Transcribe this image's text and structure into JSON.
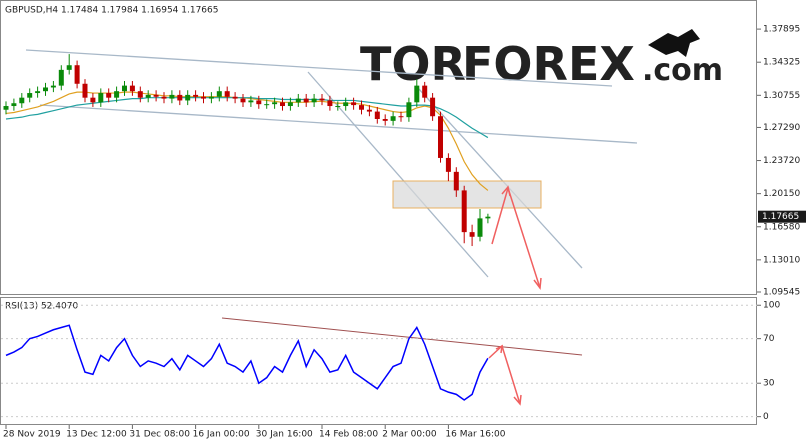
{
  "chart_data": [
    {
      "type": "candlestick",
      "title": "GBPUSD,H4  1.17484 1.17984 1.16954 1.17665",
      "logo": [
        "TOR",
        "FOREX",
        ".com"
      ],
      "up_color": "#0a8a0a",
      "down_color": "#c00000",
      "open": [
        1.292,
        1.296,
        1.299,
        1.305,
        1.31,
        1.312,
        1.316,
        1.318,
        1.335,
        1.34,
        1.32,
        1.305,
        1.3,
        1.31,
        1.305,
        1.312,
        1.318,
        1.312,
        1.305,
        1.308,
        1.306,
        1.304,
        1.308,
        1.302,
        1.308,
        1.306,
        1.304,
        1.306,
        1.312,
        1.306,
        1.304,
        1.3,
        1.302,
        1.298,
        1.298,
        1.3,
        1.296,
        1.3,
        1.304,
        1.3,
        1.304,
        1.302,
        1.296,
        1.296,
        1.3,
        1.297,
        1.292,
        1.29,
        1.282,
        1.28,
        1.285,
        1.284,
        1.3,
        1.318,
        1.305,
        1.285,
        1.24,
        1.225,
        1.205,
        1.16,
        1.155,
        1.17484
      ],
      "high": [
        1.301,
        1.304,
        1.31,
        1.315,
        1.317,
        1.321,
        1.323,
        1.34,
        1.352,
        1.345,
        1.325,
        1.31,
        1.315,
        1.315,
        1.317,
        1.323,
        1.323,
        1.317,
        1.313,
        1.313,
        1.311,
        1.313,
        1.313,
        1.313,
        1.313,
        1.311,
        1.311,
        1.317,
        1.317,
        1.311,
        1.309,
        1.307,
        1.307,
        1.303,
        1.305,
        1.305,
        1.305,
        1.309,
        1.309,
        1.309,
        1.309,
        1.307,
        1.301,
        1.305,
        1.305,
        1.302,
        1.297,
        1.295,
        1.287,
        1.29,
        1.29,
        1.305,
        1.325,
        1.322,
        1.31,
        1.29,
        1.245,
        1.23,
        1.21,
        1.168,
        1.185,
        1.17984
      ],
      "low": [
        1.287,
        1.291,
        1.294,
        1.3,
        1.305,
        1.307,
        1.311,
        1.313,
        1.33,
        1.315,
        1.3,
        1.295,
        1.295,
        1.3,
        1.3,
        1.307,
        1.307,
        1.3,
        1.3,
        1.301,
        1.299,
        1.299,
        1.297,
        1.297,
        1.301,
        1.299,
        1.299,
        1.301,
        1.301,
        1.299,
        1.295,
        1.295,
        1.293,
        1.293,
        1.293,
        1.291,
        1.291,
        1.295,
        1.295,
        1.295,
        1.297,
        1.291,
        1.291,
        1.291,
        1.292,
        1.287,
        1.285,
        1.277,
        1.275,
        1.275,
        1.279,
        1.279,
        1.295,
        1.3,
        1.28,
        1.235,
        1.215,
        1.198,
        1.148,
        1.145,
        1.15,
        1.16954
      ],
      "close": [
        1.296,
        1.299,
        1.305,
        1.31,
        1.312,
        1.316,
        1.318,
        1.335,
        1.34,
        1.32,
        1.305,
        1.3,
        1.31,
        1.305,
        1.312,
        1.318,
        1.312,
        1.305,
        1.308,
        1.306,
        1.304,
        1.308,
        1.302,
        1.308,
        1.306,
        1.304,
        1.306,
        1.312,
        1.306,
        1.304,
        1.3,
        1.302,
        1.298,
        1.298,
        1.3,
        1.296,
        1.3,
        1.304,
        1.3,
        1.304,
        1.302,
        1.296,
        1.296,
        1.3,
        1.297,
        1.292,
        1.29,
        1.282,
        1.28,
        1.285,
        1.284,
        1.3,
        1.318,
        1.305,
        1.285,
        1.24,
        1.225,
        1.205,
        1.16,
        1.155,
        1.17484,
        1.17665
      ],
      "ma_lines": [
        {
          "color": "#e0a020",
          "values": [
            1.288,
            1.289,
            1.291,
            1.293,
            1.295,
            1.298,
            1.301,
            1.305,
            1.309,
            1.311,
            1.311,
            1.31,
            1.31,
            1.31,
            1.31,
            1.311,
            1.311,
            1.31,
            1.309,
            1.308,
            1.307,
            1.307,
            1.306,
            1.306,
            1.306,
            1.306,
            1.306,
            1.306,
            1.306,
            1.305,
            1.305,
            1.304,
            1.303,
            1.302,
            1.301,
            1.3,
            1.3,
            1.3,
            1.3,
            1.301,
            1.301,
            1.3,
            1.299,
            1.299,
            1.299,
            1.298,
            1.296,
            1.294,
            1.292,
            1.29,
            1.289,
            1.29,
            1.294,
            1.296,
            1.294,
            1.286,
            1.272,
            1.255,
            1.236,
            1.222,
            1.212,
            1.205
          ]
        },
        {
          "color": "#20a0a0",
          "values": [
            1.282,
            1.283,
            1.284,
            1.286,
            1.287,
            1.289,
            1.291,
            1.293,
            1.295,
            1.297,
            1.298,
            1.299,
            1.3,
            1.301,
            1.302,
            1.303,
            1.304,
            1.304,
            1.305,
            1.305,
            1.305,
            1.305,
            1.305,
            1.305,
            1.305,
            1.305,
            1.305,
            1.305,
            1.305,
            1.305,
            1.305,
            1.305,
            1.304,
            1.304,
            1.304,
            1.303,
            1.303,
            1.303,
            1.303,
            1.303,
            1.303,
            1.302,
            1.302,
            1.302,
            1.302,
            1.301,
            1.3,
            1.299,
            1.298,
            1.297,
            1.296,
            1.296,
            1.297,
            1.297,
            1.296,
            1.293,
            1.289,
            1.284,
            1.278,
            1.272,
            1.267,
            1.262
          ]
        }
      ],
      "ylim": [
        1.0922,
        1.4071
      ],
      "yticks": [
        1.37895,
        1.34325,
        1.30755,
        {
          "value": 1.2729,
          "label": "1.27290"
        },
        {
          "value": 1.2372,
          "label": "1.23720"
        },
        {
          "value": 1.2015,
          "label": "1.20150"
        },
        {
          "value": 1.1658,
          "label": "1.16580"
        },
        {
          "value": 1.1301,
          "label": "1.13010"
        },
        1.09545
      ]
    },
    {
      "type": "line",
      "title": "RSI(13) 52.4070",
      "color": "#0000ff",
      "categories": [
        "28 Nov 2019",
        null,
        null,
        null,
        null,
        null,
        null,
        null,
        "13 Dec 12:00",
        null,
        null,
        null,
        null,
        null,
        null,
        null,
        "31 Dec 08:00",
        null,
        null,
        null,
        null,
        null,
        null,
        null,
        "16 Jan 00:00",
        null,
        null,
        null,
        null,
        null,
        null,
        null,
        "30 Jan 16:00",
        null,
        null,
        null,
        null,
        null,
        null,
        null,
        "14 Feb 08:00",
        null,
        null,
        null,
        null,
        null,
        null,
        null,
        "2 Mar 00:00",
        null,
        null,
        null,
        null,
        null,
        null,
        null,
        "16 Mar 16:00",
        null,
        null,
        null,
        null,
        null
      ],
      "values": [
        55,
        58,
        62,
        70,
        72,
        75,
        78,
        80,
        82,
        60,
        40,
        38,
        55,
        50,
        62,
        70,
        55,
        45,
        50,
        48,
        45,
        52,
        42,
        55,
        50,
        45,
        52,
        65,
        48,
        45,
        40,
        50,
        30,
        35,
        45,
        40,
        55,
        68,
        45,
        60,
        52,
        40,
        42,
        55,
        40,
        35,
        30,
        25,
        35,
        45,
        48,
        70,
        80,
        65,
        45,
        25,
        22,
        20,
        15,
        20,
        40,
        52.407
      ],
      "ylim": [
        -7.5,
        106.5
      ],
      "yticks": [
        0,
        30,
        70,
        100
      ]
    }
  ]
}
